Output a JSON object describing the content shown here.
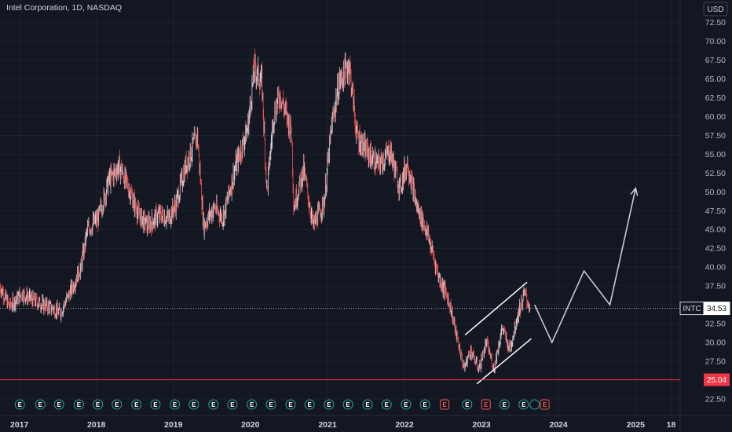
{
  "header": {
    "title": "Intel Corporation, 1D, NASDAQ",
    "currency_button": "USD"
  },
  "colors": {
    "background": "#131722",
    "up": "#d1d4dc",
    "down": "#ef5350",
    "support_line": "#f23645",
    "price_line": "#b2b5be",
    "drawing": "#ffffff",
    "projection": "#d1d4dc",
    "earnings_green": "#26a69a",
    "earnings_red": "#ef5350"
  },
  "chart_data": {
    "type": "line",
    "symbol": "INTC",
    "y_axis": {
      "range": [
        20.5,
        75.5
      ],
      "ticks": [
        "22.50",
        "25.00",
        "27.50",
        "30.00",
        "32.50",
        "35.00",
        "37.50",
        "40.00",
        "42.50",
        "45.00",
        "47.50",
        "50.00",
        "52.50",
        "55.00",
        "57.50",
        "60.00",
        "62.50",
        "65.00",
        "67.50",
        "70.00",
        "72.50"
      ]
    },
    "x_axis": {
      "range": [
        "2016-10-01",
        "2025-07-31"
      ],
      "ticks": [
        {
          "label": "2017",
          "date": "2017-01-01"
        },
        {
          "label": "2018",
          "date": "2018-01-01"
        },
        {
          "label": "2019",
          "date": "2019-01-01"
        },
        {
          "label": "2020",
          "date": "2020-01-01"
        },
        {
          "label": "2021",
          "date": "2021-01-01"
        },
        {
          "label": "2022",
          "date": "2022-01-01"
        },
        {
          "label": "2023",
          "date": "2023-01-01"
        },
        {
          "label": "2024",
          "date": "2024-01-01"
        },
        {
          "label": "2025",
          "date": "2025-01-01"
        },
        {
          "label": "18",
          "date": "2025-06-18"
        }
      ]
    },
    "grid": true,
    "price": {
      "name": "INTC",
      "x": [
        "2016-10-01",
        "2016-11-15",
        "2017-01-15",
        "2017-03-15",
        "2017-05-15",
        "2017-07-15",
        "2017-09-01",
        "2017-10-20",
        "2017-11-20",
        "2018-01-10",
        "2018-03-01",
        "2018-04-20",
        "2018-06-10",
        "2018-07-20",
        "2018-09-01",
        "2018-10-25",
        "2018-12-10",
        "2019-01-15",
        "2019-03-01",
        "2019-04-25",
        "2019-05-25",
        "2019-07-15",
        "2019-08-25",
        "2019-10-20",
        "2019-12-20",
        "2020-01-20",
        "2020-02-25",
        "2020-03-20",
        "2020-04-20",
        "2020-05-20",
        "2020-07-15",
        "2020-07-25",
        "2020-09-10",
        "2020-10-25",
        "2020-12-15",
        "2021-01-20",
        "2021-02-25",
        "2021-04-15",
        "2021-05-20",
        "2021-07-15",
        "2021-09-01",
        "2021-10-25",
        "2021-12-10",
        "2022-01-15",
        "2022-03-01",
        "2022-04-20",
        "2022-06-15",
        "2022-08-01",
        "2022-09-01",
        "2022-10-10",
        "2022-11-10",
        "2022-12-20",
        "2023-01-25",
        "2023-03-01",
        "2023-04-10",
        "2023-05-15",
        "2023-06-20",
        "2023-07-25",
        "2023-08-20"
      ],
      "values": [
        37.5,
        34.8,
        36.5,
        35.5,
        34.8,
        34.0,
        36.8,
        40.0,
        45.0,
        46.5,
        51.5,
        53.5,
        50.0,
        47.0,
        45.5,
        47.0,
        46.5,
        48.5,
        53.5,
        57.5,
        45.5,
        48.0,
        46.5,
        53.0,
        58.5,
        66.5,
        64.5,
        50.0,
        60.0,
        63.0,
        58.0,
        48.0,
        53.0,
        45.5,
        48.5,
        58.5,
        64.5,
        67.0,
        57.5,
        55.0,
        53.5,
        55.5,
        50.5,
        54.0,
        48.0,
        44.5,
        38.5,
        35.5,
        31.5,
        26.5,
        29.0,
        26.5,
        30.0,
        26.5,
        32.0,
        29.0,
        33.5,
        36.5,
        34.53
      ]
    },
    "last_price": {
      "symbol": "INTC",
      "value": "34.53"
    },
    "support_level": {
      "value": "25.04"
    },
    "earnings": [
      {
        "date": "2017-01-03",
        "label": "E",
        "kind": "green"
      },
      {
        "date": "2017-04-10",
        "label": "E",
        "kind": "green"
      },
      {
        "date": "2017-07-08",
        "label": "E",
        "kind": "green"
      },
      {
        "date": "2017-10-10",
        "label": "E",
        "kind": "green"
      },
      {
        "date": "2018-01-08",
        "label": "E",
        "kind": "green"
      },
      {
        "date": "2018-04-08",
        "label": "E",
        "kind": "green"
      },
      {
        "date": "2018-07-10",
        "label": "E",
        "kind": "green"
      },
      {
        "date": "2018-10-08",
        "label": "E",
        "kind": "green"
      },
      {
        "date": "2019-01-08",
        "label": "E",
        "kind": "green"
      },
      {
        "date": "2019-04-08",
        "label": "E",
        "kind": "green"
      },
      {
        "date": "2019-07-10",
        "label": "E",
        "kind": "green"
      },
      {
        "date": "2019-10-08",
        "label": "E",
        "kind": "green"
      },
      {
        "date": "2020-01-08",
        "label": "E",
        "kind": "green"
      },
      {
        "date": "2020-04-08",
        "label": "E",
        "kind": "green"
      },
      {
        "date": "2020-07-10",
        "label": "E",
        "kind": "green"
      },
      {
        "date": "2020-10-08",
        "label": "E",
        "kind": "green"
      },
      {
        "date": "2021-01-08",
        "label": "E",
        "kind": "green"
      },
      {
        "date": "2021-04-08",
        "label": "E",
        "kind": "green"
      },
      {
        "date": "2021-07-10",
        "label": "E",
        "kind": "green"
      },
      {
        "date": "2021-10-08",
        "label": "E",
        "kind": "green"
      },
      {
        "date": "2022-01-08",
        "label": "E",
        "kind": "green"
      },
      {
        "date": "2022-04-08",
        "label": "E",
        "kind": "green"
      },
      {
        "date": "2022-07-10",
        "label": "E",
        "kind": "red"
      },
      {
        "date": "2022-10-25",
        "label": "E",
        "kind": "green"
      },
      {
        "date": "2023-01-22",
        "label": "E",
        "kind": "red"
      },
      {
        "date": "2023-04-20",
        "label": "E",
        "kind": "green"
      },
      {
        "date": "2023-07-20",
        "label": "E",
        "kind": "green"
      },
      {
        "date": "2023-09-10",
        "label": "E",
        "kind": "hollow-green"
      },
      {
        "date": "2023-10-28",
        "label": "E",
        "kind": "red"
      }
    ],
    "annotations": {
      "channel_upper": [
        {
          "x": "2022-10-15",
          "y": 31.0
        },
        {
          "x": "2023-08-05",
          "y": 38.0
        }
      ],
      "channel_lower": [
        {
          "x": "2022-12-10",
          "y": 24.5
        },
        {
          "x": "2023-08-25",
          "y": 30.5
        }
      ],
      "projection": [
        {
          "x": "2023-09-10",
          "y": 35.0
        },
        {
          "x": "2023-12-01",
          "y": 30.0
        },
        {
          "x": "2024-05-01",
          "y": 39.5
        },
        {
          "x": "2024-09-01",
          "y": 35.0
        },
        {
          "x": "2025-01-01",
          "y": 50.5
        }
      ]
    }
  }
}
